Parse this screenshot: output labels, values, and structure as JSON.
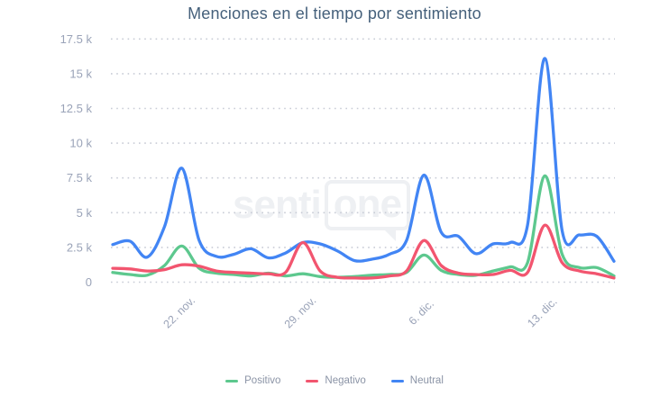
{
  "watermark": {
    "prefix": "senti",
    "bubble_text": "one"
  },
  "colors": {
    "background": "#ffffff",
    "title_text": "#45607b",
    "axis_labels": "#9aa3b8",
    "grid_dots": "#c8ccd6",
    "legend_text": "#8b94a6",
    "watermark": "#eef0f3",
    "positive": "#5dc88e",
    "negative": "#f2556f",
    "neutral": "#4285f4"
  },
  "chart_data": {
    "type": "line",
    "title": "Menciones en el tiempo por sentimiento",
    "xlabel": "",
    "ylabel": "",
    "ylim": [
      0,
      17500
    ],
    "grid": "horizontal-dotted",
    "legend_position": "bottom",
    "x_unit": "day",
    "x_count": 30,
    "y_ticks": [
      {
        "value": 0,
        "label": "0"
      },
      {
        "value": 2500,
        "label": "2.5 k"
      },
      {
        "value": 5000,
        "label": "5 k"
      },
      {
        "value": 7500,
        "label": "7.5 k"
      },
      {
        "value": 10000,
        "label": "10 k"
      },
      {
        "value": 12500,
        "label": "12.5 k"
      },
      {
        "value": 15000,
        "label": "15 k"
      },
      {
        "value": 17500,
        "label": "17.5 k"
      }
    ],
    "x_ticks": [
      {
        "index": 4,
        "label": "22. nov."
      },
      {
        "index": 11,
        "label": "29. nov."
      },
      {
        "index": 18,
        "label": "6. dic."
      },
      {
        "index": 25,
        "label": "13. dic."
      }
    ],
    "series": [
      {
        "name": "Positivo",
        "color": "#5dc88e",
        "z": 1,
        "values": [
          700,
          550,
          500,
          1200,
          2600,
          1000,
          650,
          550,
          450,
          650,
          450,
          600,
          400,
          350,
          400,
          500,
          550,
          700,
          1950,
          850,
          550,
          500,
          800,
          1100,
          1400,
          7650,
          2000,
          1050,
          1050,
          450
        ]
      },
      {
        "name": "Negativo",
        "color": "#f2556f",
        "z": 2,
        "values": [
          1000,
          950,
          800,
          900,
          1250,
          1150,
          800,
          700,
          650,
          600,
          700,
          2850,
          800,
          350,
          300,
          300,
          450,
          800,
          3000,
          1200,
          650,
          550,
          550,
          850,
          700,
          4100,
          1400,
          800,
          600,
          300
        ]
      },
      {
        "name": "Neutral",
        "color": "#4285f4",
        "z": 0,
        "values": [
          2700,
          2950,
          1800,
          4000,
          8200,
          3000,
          1850,
          2000,
          2400,
          1750,
          2100,
          2850,
          2750,
          2250,
          1550,
          1650,
          2000,
          3000,
          7700,
          3600,
          3300,
          2050,
          2750,
          2850,
          4100,
          16100,
          3700,
          3400,
          3300,
          1500
        ]
      }
    ]
  }
}
